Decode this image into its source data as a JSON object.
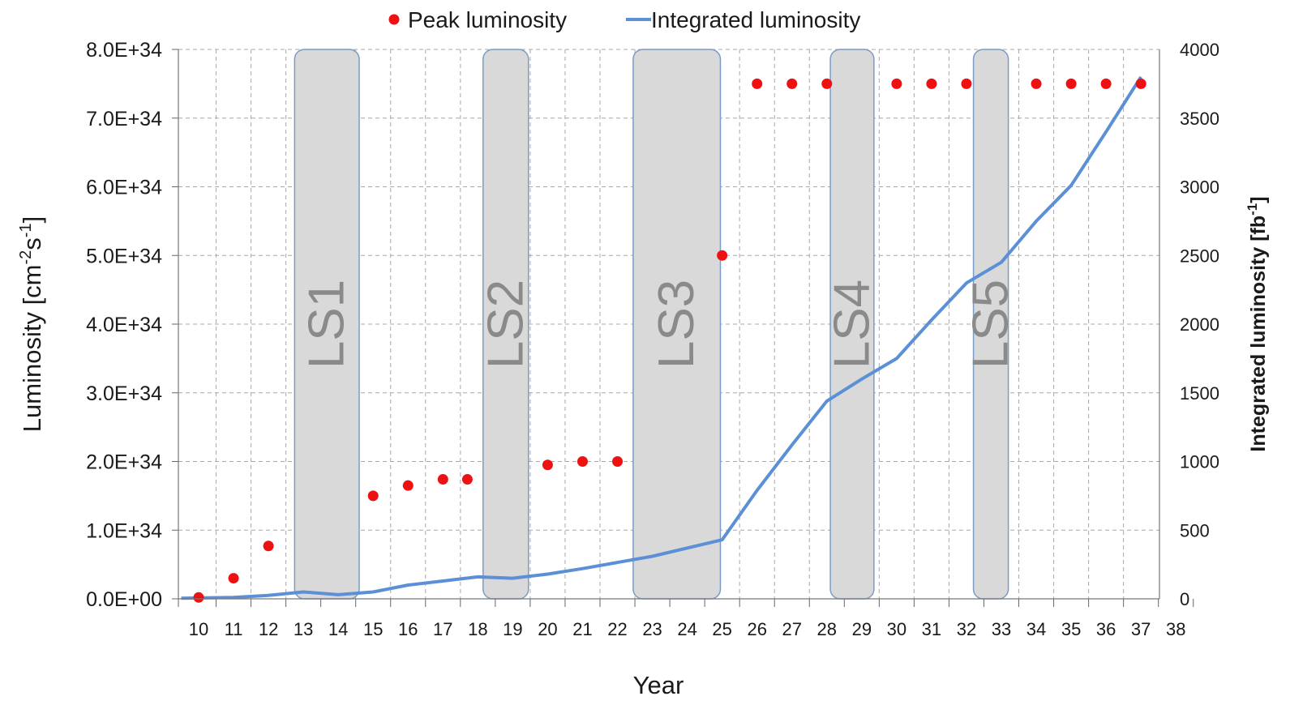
{
  "chart_data": {
    "type": "line",
    "title": "",
    "xlabel": "Year",
    "ylabel": "Luminosity [cm",
    "ylabel_sup1": "-2",
    "ylabel_mid": "s",
    "ylabel_sup2": "-1",
    "ylabel_end": "]",
    "y2label": "Integrated luminosity [fb",
    "y2label_sup": "-1",
    "y2label_end": "]",
    "xlim": [
      9.5,
      38
    ],
    "ylim": [
      0,
      8e+34
    ],
    "y2lim": [
      0,
      4000
    ],
    "grid": true,
    "legend_position": "top",
    "x_ticks": [
      "10",
      "11",
      "12",
      "13",
      "14",
      "15",
      "16",
      "17",
      "18",
      "19",
      "20",
      "21",
      "22",
      "23",
      "24",
      "25",
      "26",
      "27",
      "28",
      "29",
      "30",
      "31",
      "32",
      "33",
      "34",
      "35",
      "36",
      "37",
      "38"
    ],
    "y_ticks": [
      "0.0E+00",
      "1.0E+34",
      "2.0E+34",
      "3.0E+34",
      "4.0E+34",
      "5.0E+34",
      "6.0E+34",
      "7.0E+34",
      "8.0E+34"
    ],
    "y2_ticks": [
      "0",
      "500",
      "1000",
      "1500",
      "2000",
      "2500",
      "3000",
      "3500",
      "4000"
    ],
    "shutdowns": [
      {
        "label": "LS1",
        "start": 12.75,
        "end": 14.6
      },
      {
        "label": "LS2",
        "start": 18.15,
        "end": 19.45
      },
      {
        "label": "LS3",
        "start": 22.45,
        "end": 24.95
      },
      {
        "label": "LS4",
        "start": 28.1,
        "end": 29.35
      },
      {
        "label": "LS5",
        "start": 32.2,
        "end": 33.2
      }
    ],
    "series": [
      {
        "name": "Peak luminosity",
        "kind": "scatter",
        "color": "#ee1111",
        "axis": "left",
        "points": [
          [
            10,
            2e+32
          ],
          [
            11,
            3e+33
          ],
          [
            12,
            7.7e+33
          ],
          [
            15,
            1.5e+34
          ],
          [
            16,
            1.65e+34
          ],
          [
            17,
            1.74e+34
          ],
          [
            17.7,
            1.74e+34
          ],
          [
            20,
            1.95e+34
          ],
          [
            21,
            2e+34
          ],
          [
            22,
            2e+34
          ],
          [
            25,
            5e+34
          ],
          [
            26,
            7.5e+34
          ],
          [
            27,
            7.5e+34
          ],
          [
            28,
            7.5e+34
          ],
          [
            30,
            7.5e+34
          ],
          [
            31,
            7.5e+34
          ],
          [
            32,
            7.5e+34
          ],
          [
            34,
            7.5e+34
          ],
          [
            35,
            7.5e+34
          ],
          [
            36,
            7.5e+34
          ],
          [
            37,
            7.5e+34
          ]
        ]
      },
      {
        "name": "Integrated luminosity",
        "kind": "line",
        "color": "#5b8fd6",
        "axis": "right",
        "points": [
          [
            9.5,
            5
          ],
          [
            11,
            10
          ],
          [
            12,
            25
          ],
          [
            13,
            50
          ],
          [
            14,
            30
          ],
          [
            15,
            50
          ],
          [
            16,
            100
          ],
          [
            17,
            130
          ],
          [
            18,
            160
          ],
          [
            19,
            150
          ],
          [
            20,
            180
          ],
          [
            21,
            220
          ],
          [
            22,
            265
          ],
          [
            23,
            310
          ],
          [
            24,
            370
          ],
          [
            25,
            430
          ],
          [
            26,
            790
          ],
          [
            27,
            1120
          ],
          [
            28,
            1440
          ],
          [
            29,
            1600
          ],
          [
            30,
            1750
          ],
          [
            31,
            2030
          ],
          [
            32,
            2300
          ],
          [
            33,
            2450
          ],
          [
            34,
            2750
          ],
          [
            35,
            3010
          ],
          [
            36,
            3400
          ],
          [
            37,
            3800
          ]
        ]
      }
    ]
  }
}
